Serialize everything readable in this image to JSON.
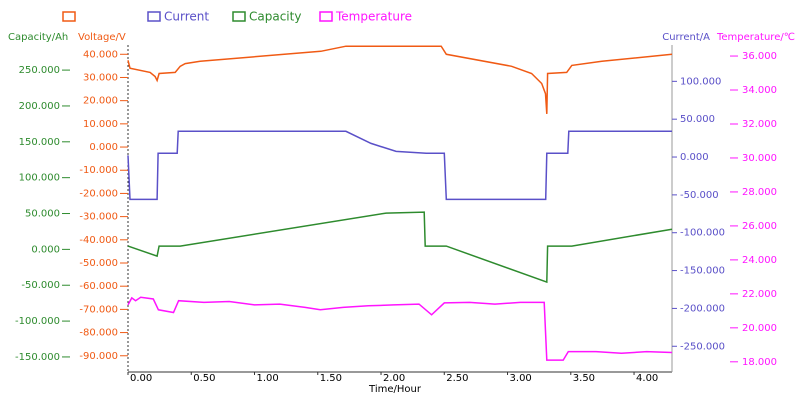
{
  "chart_data": {
    "type": "line",
    "xlabel": "Time/Hour",
    "xlim": [
      0,
      4.3
    ],
    "xticks": [
      {
        "value": 0,
        "label": "0.00"
      },
      {
        "value": 0.5,
        "label": "0.50"
      },
      {
        "value": 1,
        "label": "1.00"
      },
      {
        "value": 1.5,
        "label": "1.50"
      },
      {
        "value": 2,
        "label": "2.00"
      },
      {
        "value": 2.5,
        "label": "2.50"
      },
      {
        "value": 3,
        "label": "3.00"
      },
      {
        "value": 3.5,
        "label": "3.50"
      },
      {
        "value": 4,
        "label": "4.00"
      }
    ],
    "ylabel": "Capacity/Ah",
    "ylim": [
      -171,
      285
    ],
    "yticks": [
      {
        "value": 250,
        "label": "250.000"
      },
      {
        "value": 200,
        "label": "200.000"
      },
      {
        "value": 150,
        "label": "150.000"
      },
      {
        "value": 100,
        "label": "100.000"
      },
      {
        "value": 50,
        "label": "50.000"
      },
      {
        "value": 0,
        "label": "0.000"
      },
      {
        "value": -50,
        "label": "-50.000"
      },
      {
        "value": -100,
        "label": "-100.000"
      },
      {
        "value": -150,
        "label": "-150.000"
      }
    ],
    "y2label": "Voltage/V",
    "y2lim": [
      -97,
      44
    ],
    "y2ticks": [
      {
        "value": 40,
        "label": "40.000"
      },
      {
        "value": 30,
        "label": "30.000"
      },
      {
        "value": 20,
        "label": "20.000"
      },
      {
        "value": 10,
        "label": "10.000"
      },
      {
        "value": 0,
        "label": "0.000"
      },
      {
        "value": -10,
        "label": "-10.000"
      },
      {
        "value": -20,
        "label": "-20.000"
      },
      {
        "value": -30,
        "label": "-30.000"
      },
      {
        "value": -40,
        "label": "-40.000"
      },
      {
        "value": -50,
        "label": "-50.000"
      },
      {
        "value": -60,
        "label": "-60.000"
      },
      {
        "value": -70,
        "label": "-70.000"
      },
      {
        "value": -80,
        "label": "-80.000"
      },
      {
        "value": -90,
        "label": "-90.000"
      }
    ],
    "y3label": "Current/A",
    "y3lim": [
      -284,
      148
    ],
    "y3ticks": [
      {
        "value": 100,
        "label": "100.000"
      },
      {
        "value": 50,
        "label": "50.000"
      },
      {
        "value": 0,
        "label": "0.000"
      },
      {
        "value": -50,
        "label": "-50.000"
      },
      {
        "value": -100,
        "label": "-100.000"
      },
      {
        "value": -150,
        "label": "-150.000"
      },
      {
        "value": -200,
        "label": "-200.000"
      },
      {
        "value": -250,
        "label": "-250.000"
      }
    ],
    "y4label": "Temperature/℃",
    "y4lim": [
      17.4,
      36.65
    ],
    "y4ticks": [
      {
        "value": 36,
        "label": "36.000"
      },
      {
        "value": 34,
        "label": "34.000"
      },
      {
        "value": 32,
        "label": "32.000"
      },
      {
        "value": 30,
        "label": "30.000"
      },
      {
        "value": 28,
        "label": "28.000"
      },
      {
        "value": 26,
        "label": "26.000"
      },
      {
        "value": 24,
        "label": "24.000"
      },
      {
        "value": 22,
        "label": "22.000"
      },
      {
        "value": 20,
        "label": "20.000"
      },
      {
        "value": 18,
        "label": "18.000"
      }
    ],
    "series": [
      {
        "color": "#f05a14",
        "axis": "y2",
        "x": [
          0,
          0.016,
          0.175,
          0.214,
          0.23,
          0.246,
          0.373,
          0.413,
          0.452,
          0.571,
          1.524,
          1.722,
          2.476,
          2.516,
          3.032,
          3.19,
          3.27,
          3.3,
          3.31,
          3.317,
          3.468,
          3.508,
          3.746,
          4.3
        ],
        "values": [
          37.4,
          34,
          32.2,
          30.4,
          28.7,
          31.7,
          32.2,
          34.8,
          36,
          37,
          41.3,
          43.5,
          43.5,
          40,
          34.8,
          31.7,
          27.4,
          23,
          14.3,
          31.7,
          32.2,
          35.2,
          37,
          40
        ]
      },
      {
        "name": "Current",
        "color": "#5a50c8",
        "axis": "y3",
        "x": [
          0,
          0.016,
          0.23,
          0.238,
          0.389,
          0.397,
          1.722,
          1.921,
          2.119,
          2.357,
          2.5,
          2.516,
          3.302,
          3.31,
          3.476,
          3.484,
          4.3
        ],
        "values": [
          2.2,
          -56,
          -56,
          4.9,
          4.9,
          34,
          34,
          18,
          7.5,
          4.9,
          4.9,
          -56,
          -56,
          4.9,
          4.9,
          34,
          34
        ]
      },
      {
        "name": "Capacity",
        "color": "#2e8b2e",
        "axis": "y",
        "x": [
          0,
          0.23,
          0.246,
          0.413,
          2.04,
          2.341,
          2.349,
          2.516,
          3.31,
          3.317,
          3.508,
          4.3
        ],
        "values": [
          4.5,
          -9.4,
          4.5,
          4.5,
          50.6,
          52,
          4.5,
          4.5,
          -45.7,
          4.5,
          4.5,
          28.2
        ]
      },
      {
        "name": "Temperature",
        "color": "#ff14ff",
        "axis": "y4",
        "x": [
          0,
          0.03,
          0.06,
          0.1,
          0.2,
          0.24,
          0.36,
          0.4,
          0.6,
          0.8,
          1,
          1.2,
          1.4,
          1.52,
          1.7,
          1.9,
          2.1,
          2.3,
          2.4,
          2.5,
          2.7,
          2.9,
          3.1,
          3.29,
          3.31,
          3.44,
          3.48,
          3.7,
          3.9,
          4.1,
          4.3
        ],
        "values": [
          21.35,
          21.76,
          21.6,
          21.8,
          21.7,
          21.06,
          20.9,
          21.6,
          21.5,
          21.55,
          21.35,
          21.4,
          21.2,
          21.06,
          21.2,
          21.3,
          21.35,
          21.4,
          20.77,
          21.47,
          21.5,
          21.4,
          21.5,
          21.5,
          18.1,
          18.1,
          18.6,
          18.6,
          18.5,
          18.6,
          18.55
        ]
      }
    ]
  }
}
